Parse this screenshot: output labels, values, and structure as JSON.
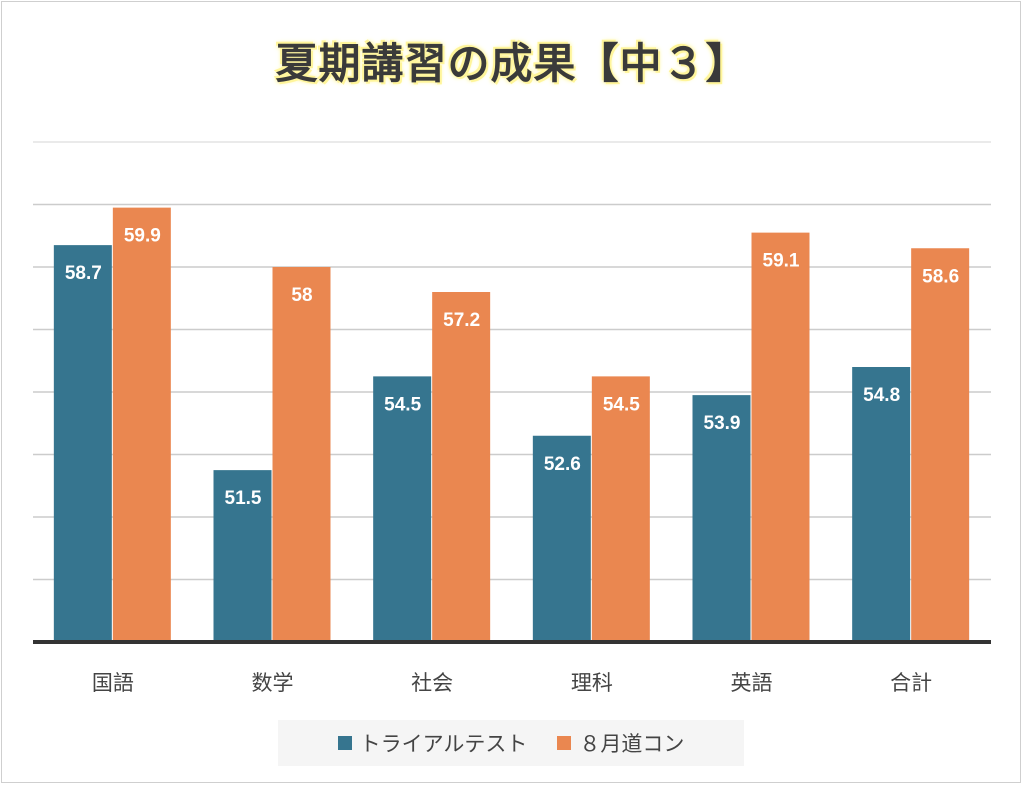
{
  "colors": {
    "series1": "#36758f",
    "series2": "#ea8750",
    "grid": "#cccccc",
    "axis": "#333333"
  },
  "chart_data": {
    "type": "bar",
    "title": "夏期講習の成果【中３】",
    "categories": [
      "国語",
      "数学",
      "社会",
      "理科",
      "英語",
      "合計"
    ],
    "series": [
      {
        "name": "トライアルテスト",
        "values": [
          58.7,
          51.5,
          54.5,
          52.6,
          53.9,
          54.8
        ]
      },
      {
        "name": "８月道コン",
        "values": [
          59.9,
          58,
          57.2,
          54.5,
          59.1,
          58.6
        ]
      }
    ],
    "ylim": [
      46,
      62
    ],
    "grid": true,
    "legend": "bottom"
  }
}
